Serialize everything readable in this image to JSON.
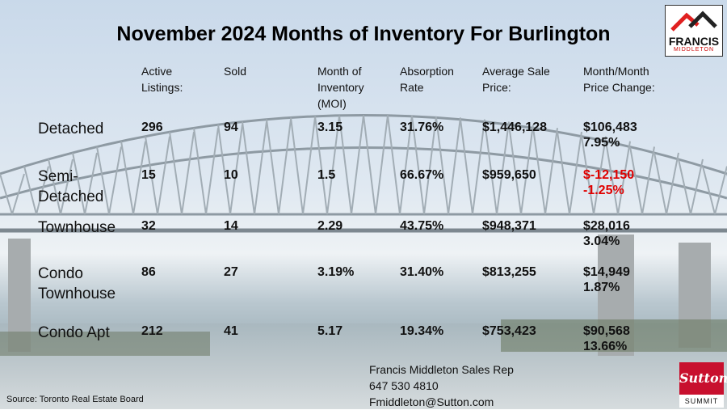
{
  "title": "November 2024 Months of Inventory For Burlington",
  "logo": {
    "brand": "FRANCIS",
    "sub": "MIDDLETON"
  },
  "headers": [
    [
      "Active",
      "Listings:"
    ],
    [
      "Sold"
    ],
    [
      "Month of",
      "Inventory",
      "(MOI)"
    ],
    [
      "Absorption",
      "Rate"
    ],
    [
      "Average Sale",
      "Price:"
    ],
    [
      "Month/Month",
      "Price Change:"
    ]
  ],
  "rows": [
    {
      "label": [
        "Detached"
      ],
      "active": "296",
      "sold": "94",
      "moi": "3.15",
      "absorption": "31.76%",
      "price": "$1,446,128",
      "change": "$106,483",
      "change_pct": "7.95%",
      "negative": false
    },
    {
      "label": [
        "Semi-",
        "Detached"
      ],
      "active": "15",
      "sold": "10",
      "moi": "1.5",
      "absorption": "66.67%",
      "price": "$959,650",
      "change": "$-12,150",
      "change_pct": "-1.25%",
      "negative": true
    },
    {
      "label": [
        "Townhouse"
      ],
      "active": "32",
      "sold": "14",
      "moi": "2.29",
      "absorption": "43.75%",
      "price": "$948,371",
      "change": "$28,016",
      "change_pct": "3.04%",
      "negative": false
    },
    {
      "label": [
        "Condo",
        "Townhouse"
      ],
      "active": "86",
      "sold": "27",
      "moi": "3.19%",
      "absorption": "31.40%",
      "price": "$813,255",
      "change": "$14,949",
      "change_pct": "1.87%",
      "negative": false
    },
    {
      "label": [
        "Condo Apt"
      ],
      "active": "212",
      "sold": "41",
      "moi": "5.17",
      "absorption": "19.34%",
      "price": "$753,423",
      "change": "$90,568",
      "change_pct": "13.66%",
      "negative": false
    }
  ],
  "contact": {
    "name": "Francis Middleton Sales Rep",
    "phone": "647 530 4810",
    "email": "Fmiddleton@Sutton.com"
  },
  "source": "Source: Toronto Real Estate Board",
  "sutton": {
    "brand": "Sutton",
    "sub": "SUMMIT"
  },
  "colors": {
    "negative": "#e00000",
    "sutton_red": "#c8102e"
  }
}
